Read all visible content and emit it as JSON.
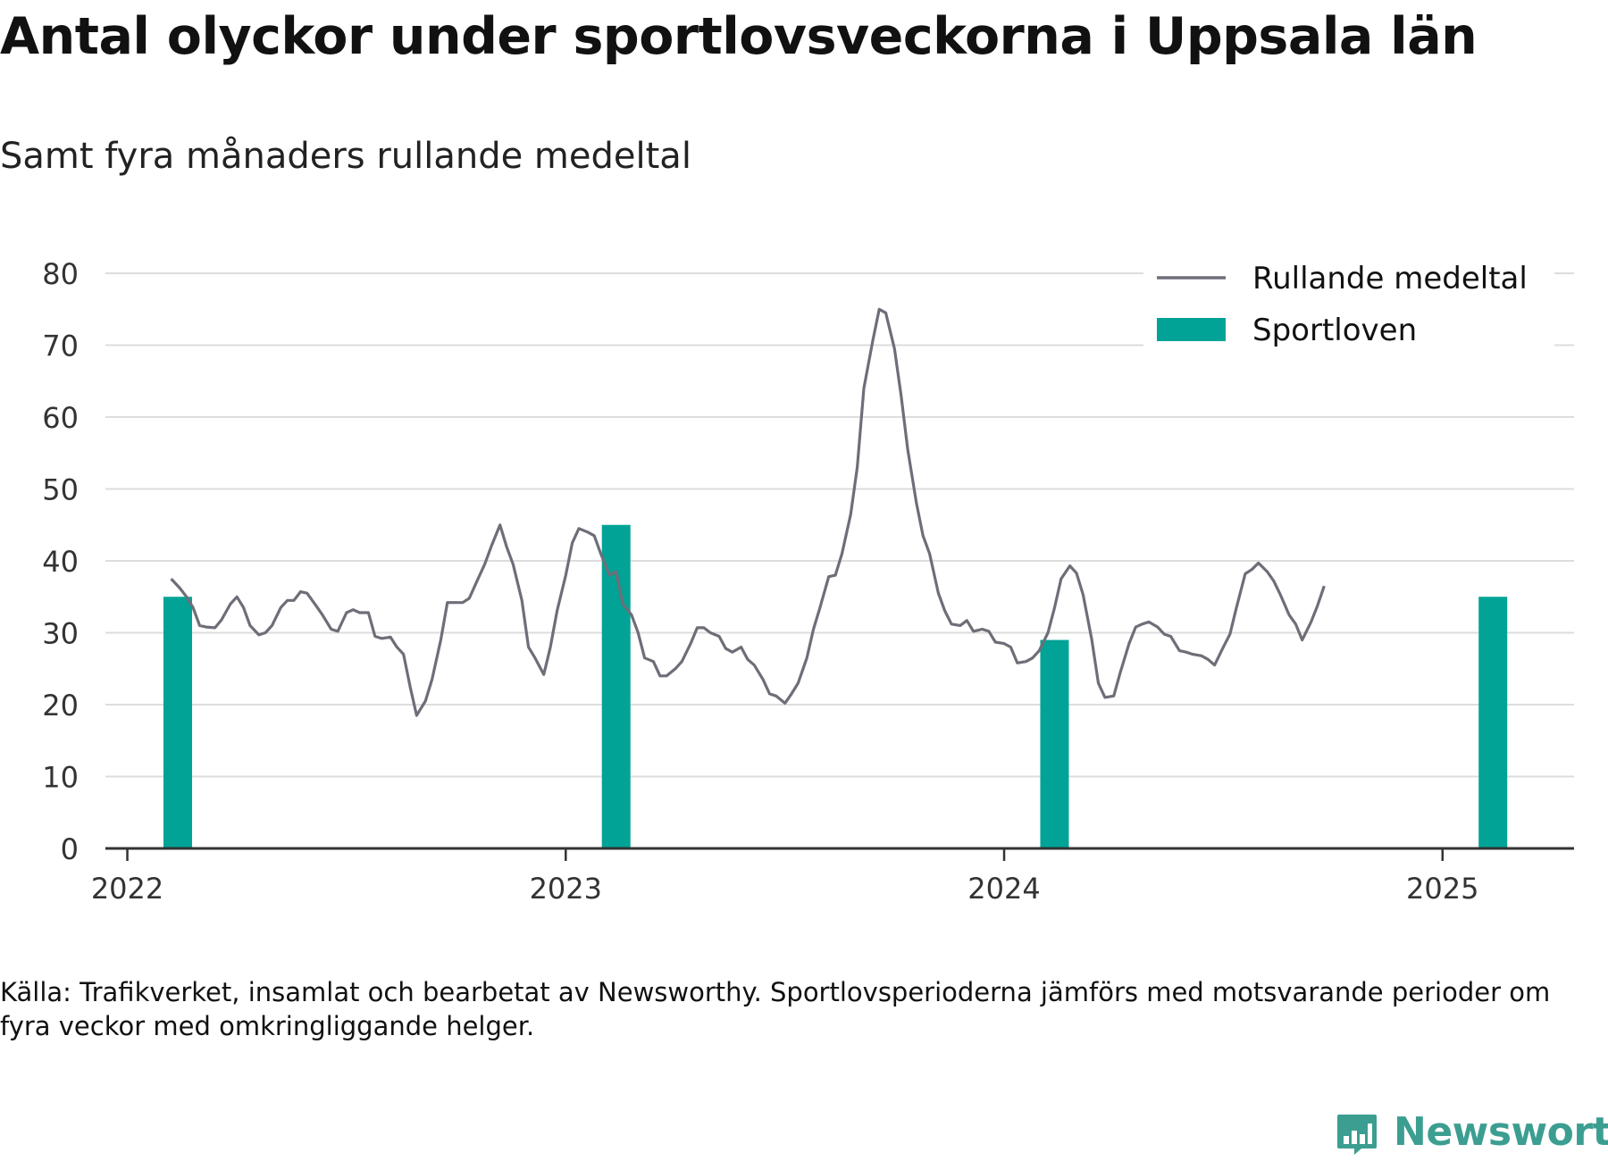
{
  "title": "Antal olyckor under sportlovsveckorna i Uppsala län",
  "subtitle": "Samt fyra månaders rullande medeltal",
  "source": "Källa: Trafikverket, insamlat och bearbetat av Newsworthy. Sportlovsperioderna jämförs med motsvarande perioder om fyra veckor med omkringliggande helger.",
  "logo": {
    "text": "Newsworthy",
    "color": "#3b9e91",
    "icon": "newsworthy-logo-icon"
  },
  "colors": {
    "line": "#6e6e78",
    "bar": "#00a396",
    "grid": "#dddddd",
    "axis": "#333333"
  },
  "chart_data": {
    "type": "bar+line",
    "title": "Antal olyckor under sportlovsveckorna i Uppsala län",
    "subtitle": "Samt fyra månaders rullande medeltal",
    "xlabel": "",
    "ylabel": "",
    "ylim": [
      0,
      80
    ],
    "xlim": [
      2021.95,
      2025.3
    ],
    "yticks": [
      0,
      10,
      20,
      30,
      40,
      50,
      60,
      70,
      80
    ],
    "xticks": [
      {
        "value": 2022,
        "label": "2022"
      },
      {
        "value": 2023,
        "label": "2023"
      },
      {
        "value": 2024,
        "label": "2024"
      },
      {
        "value": 2025,
        "label": "2025"
      }
    ],
    "grid": "horizontal",
    "legend_position": "top-right",
    "legend": [
      {
        "name": "Rullande medeltal",
        "kind": "line"
      },
      {
        "name": "Sportloven",
        "kind": "bar"
      }
    ],
    "bars": {
      "name": "Sportloven",
      "points": [
        {
          "x": 2022.115,
          "y": 35
        },
        {
          "x": 2023.115,
          "y": 45
        },
        {
          "x": 2024.115,
          "y": 29
        },
        {
          "x": 2025.115,
          "y": 35
        }
      ]
    },
    "line": {
      "name": "Rullande medeltal",
      "points": [
        [
          2022.1,
          37.5
        ],
        [
          2022.12,
          36.2
        ],
        [
          2022.135,
          35.0
        ],
        [
          2022.15,
          33.5
        ],
        [
          2022.165,
          31.0
        ],
        [
          2022.18,
          30.8
        ],
        [
          2022.2,
          30.7
        ],
        [
          2022.215,
          31.8
        ],
        [
          2022.235,
          34.0
        ],
        [
          2022.25,
          35.0
        ],
        [
          2022.265,
          33.5
        ],
        [
          2022.28,
          31.0
        ],
        [
          2022.3,
          29.7
        ],
        [
          2022.315,
          30.0
        ],
        [
          2022.33,
          31.0
        ],
        [
          2022.35,
          33.5
        ],
        [
          2022.365,
          34.5
        ],
        [
          2022.38,
          34.5
        ],
        [
          2022.395,
          35.7
        ],
        [
          2022.41,
          35.5
        ],
        [
          2022.43,
          33.8
        ],
        [
          2022.445,
          32.5
        ],
        [
          2022.465,
          30.5
        ],
        [
          2022.48,
          30.2
        ],
        [
          2022.5,
          32.8
        ],
        [
          2022.515,
          33.2
        ],
        [
          2022.53,
          32.8
        ],
        [
          2022.55,
          32.8
        ],
        [
          2022.565,
          29.5
        ],
        [
          2022.58,
          29.2
        ],
        [
          2022.6,
          29.4
        ],
        [
          2022.615,
          28.0
        ],
        [
          2022.63,
          27.0
        ],
        [
          2022.645,
          22.5
        ],
        [
          2022.66,
          18.5
        ],
        [
          2022.68,
          20.5
        ],
        [
          2022.695,
          23.5
        ],
        [
          2022.715,
          29.0
        ],
        [
          2022.73,
          34.2
        ],
        [
          2022.745,
          34.2
        ],
        [
          2022.765,
          34.2
        ],
        [
          2022.78,
          34.8
        ],
        [
          2022.8,
          37.5
        ],
        [
          2022.815,
          39.5
        ],
        [
          2022.83,
          42.0
        ],
        [
          2022.85,
          45.0
        ],
        [
          2022.865,
          42.0
        ],
        [
          2022.88,
          39.5
        ],
        [
          2022.9,
          34.5
        ],
        [
          2022.915,
          28.0
        ],
        [
          2022.93,
          26.5
        ],
        [
          2022.95,
          24.2
        ],
        [
          2022.965,
          28.0
        ],
        [
          2022.98,
          33.0
        ],
        [
          2023.0,
          38.0
        ],
        [
          2023.015,
          42.5
        ],
        [
          2023.03,
          44.5
        ],
        [
          2023.05,
          44.0
        ],
        [
          2023.065,
          43.5
        ],
        [
          2023.08,
          41.0
        ],
        [
          2023.1,
          38.0
        ],
        [
          2023.115,
          38.5
        ],
        [
          2023.13,
          34.0
        ],
        [
          2023.15,
          32.5
        ],
        [
          2023.165,
          30.0
        ],
        [
          2023.18,
          26.5
        ],
        [
          2023.2,
          26.0
        ],
        [
          2023.215,
          24.0
        ],
        [
          2023.23,
          24.0
        ],
        [
          2023.25,
          25.0
        ],
        [
          2023.265,
          26.0
        ],
        [
          2023.285,
          28.5
        ],
        [
          2023.3,
          30.7
        ],
        [
          2023.315,
          30.7
        ],
        [
          2023.33,
          30.0
        ],
        [
          2023.35,
          29.5
        ],
        [
          2023.365,
          27.8
        ],
        [
          2023.38,
          27.3
        ],
        [
          2023.4,
          28.0
        ],
        [
          2023.415,
          26.3
        ],
        [
          2023.43,
          25.5
        ],
        [
          2023.45,
          23.5
        ],
        [
          2023.465,
          21.5
        ],
        [
          2023.48,
          21.2
        ],
        [
          2023.5,
          20.2
        ],
        [
          2023.515,
          21.5
        ],
        [
          2023.53,
          23.0
        ],
        [
          2023.55,
          26.5
        ],
        [
          2023.565,
          30.5
        ],
        [
          2023.58,
          33.5
        ],
        [
          2023.6,
          37.8
        ],
        [
          2023.615,
          38.0
        ],
        [
          2023.63,
          41.0
        ],
        [
          2023.65,
          46.5
        ],
        [
          2023.665,
          53.0
        ],
        [
          2023.68,
          64.0
        ],
        [
          2023.7,
          70.5
        ],
        [
          2023.715,
          75.0
        ],
        [
          2023.73,
          74.5
        ],
        [
          2023.75,
          69.5
        ],
        [
          2023.765,
          63.0
        ],
        [
          2023.78,
          55.5
        ],
        [
          2023.8,
          48.0
        ],
        [
          2023.815,
          43.5
        ],
        [
          2023.83,
          41.0
        ],
        [
          2023.85,
          35.5
        ],
        [
          2023.865,
          33.0
        ],
        [
          2023.88,
          31.2
        ],
        [
          2023.9,
          31.0
        ],
        [
          2023.915,
          31.7
        ],
        [
          2023.93,
          30.2
        ],
        [
          2023.95,
          30.5
        ],
        [
          2023.965,
          30.2
        ],
        [
          2023.98,
          28.7
        ],
        [
          2024.0,
          28.5
        ],
        [
          2024.015,
          28.0
        ],
        [
          2024.03,
          25.8
        ],
        [
          2024.05,
          26.0
        ],
        [
          2024.065,
          26.5
        ],
        [
          2024.08,
          27.5
        ],
        [
          2024.1,
          30.0
        ],
        [
          2024.115,
          33.5
        ],
        [
          2024.13,
          37.5
        ],
        [
          2024.15,
          39.3
        ],
        [
          2024.165,
          38.3
        ],
        [
          2024.18,
          35.3
        ],
        [
          2024.2,
          29.0
        ],
        [
          2024.215,
          23.0
        ],
        [
          2024.23,
          21.0
        ],
        [
          2024.25,
          21.2
        ],
        [
          2024.265,
          24.5
        ],
        [
          2024.285,
          28.5
        ],
        [
          2024.3,
          30.8
        ],
        [
          2024.315,
          31.2
        ],
        [
          2024.33,
          31.5
        ],
        [
          2024.35,
          30.8
        ],
        [
          2024.365,
          29.8
        ],
        [
          2024.38,
          29.5
        ],
        [
          2024.4,
          27.5
        ],
        [
          2024.415,
          27.3
        ],
        [
          2024.43,
          27.0
        ],
        [
          2024.45,
          26.8
        ],
        [
          2024.465,
          26.3
        ],
        [
          2024.48,
          25.5
        ],
        [
          2024.5,
          28.0
        ],
        [
          2024.515,
          29.8
        ],
        [
          2024.53,
          33.5
        ],
        [
          2024.55,
          38.2
        ],
        [
          2024.565,
          38.8
        ],
        [
          2024.58,
          39.7
        ],
        [
          2024.6,
          38.5
        ],
        [
          2024.615,
          37.2
        ],
        [
          2024.63,
          35.3
        ],
        [
          2024.65,
          32.5
        ],
        [
          2024.665,
          31.2
        ],
        [
          2024.68,
          29.0
        ],
        [
          2024.7,
          31.5
        ],
        [
          2024.715,
          33.8
        ],
        [
          2024.73,
          36.5
        ]
      ]
    }
  }
}
